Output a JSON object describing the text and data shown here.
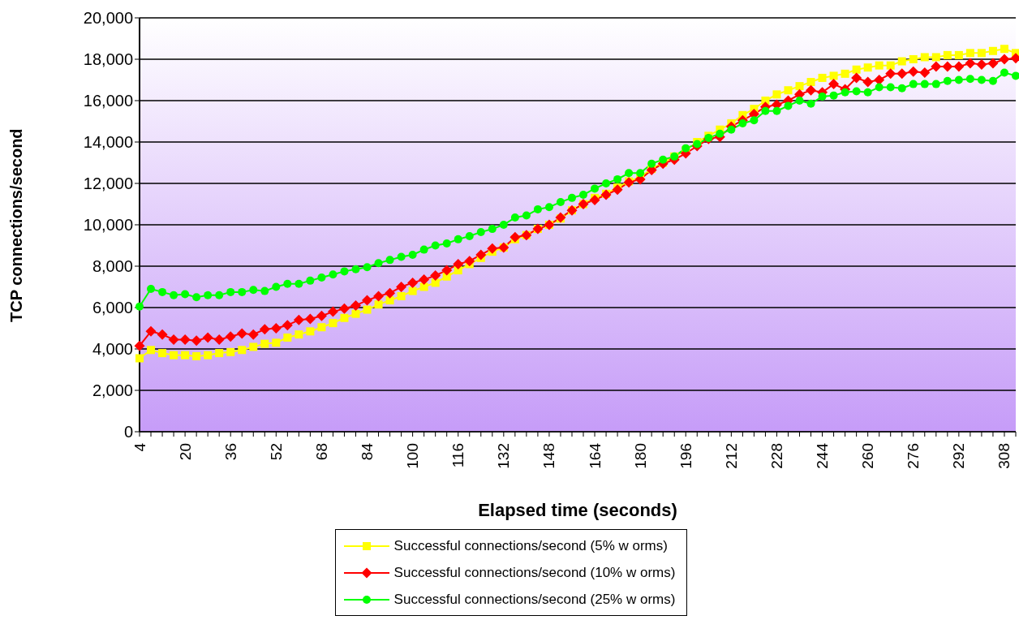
{
  "chart_data": {
    "type": "line",
    "xlabel": "Elapsed time (seconds)",
    "ylabel": "TCP connections/second",
    "categories": [
      "4",
      null,
      null,
      null,
      "20",
      null,
      null,
      null,
      "36",
      null,
      null,
      null,
      "52",
      null,
      null,
      null,
      "68",
      null,
      null,
      null,
      "84",
      null,
      null,
      null,
      "100",
      null,
      null,
      null,
      "116",
      null,
      null,
      null,
      "132",
      null,
      null,
      null,
      "148",
      null,
      null,
      null,
      "164",
      null,
      null,
      null,
      "180",
      null,
      null,
      null,
      "196",
      null,
      null,
      null,
      "212",
      null,
      null,
      null,
      "228",
      null,
      null,
      null,
      "244",
      null,
      null,
      null,
      "260",
      null,
      null,
      null,
      "276",
      null,
      null,
      null,
      "292",
      null,
      null,
      null,
      "308",
      null
    ],
    "series": [
      {
        "name": "Successful connections/second (5% w orms)",
        "color": "#ffff00",
        "marker": "square",
        "values": [
          3550,
          3950,
          3800,
          3700,
          3700,
          3650,
          3700,
          3800,
          3850,
          3950,
          4100,
          4250,
          4300,
          4550,
          4700,
          4850,
          5050,
          5250,
          5500,
          5700,
          5900,
          6150,
          6350,
          6550,
          6800,
          7000,
          7200,
          7500,
          7800,
          8100,
          8400,
          8700,
          8900,
          9300,
          9500,
          9800,
          10000,
          10300,
          10700,
          11000,
          11300,
          11500,
          11800,
          12100,
          12300,
          12700,
          13000,
          13300,
          13600,
          14000,
          14300,
          14600,
          14900,
          15300,
          15600,
          16000,
          16300,
          16500,
          16700,
          16900,
          17100,
          17200,
          17300,
          17500,
          17600,
          17700,
          17700,
          17900,
          18000,
          18100,
          18100,
          18200,
          18200,
          18300,
          18300,
          18400,
          18500,
          18300
        ]
      },
      {
        "name": "Successful connections/second (10% w orms)",
        "color": "#ff0000",
        "marker": "diamond",
        "values": [
          4150,
          4850,
          4700,
          4450,
          4450,
          4400,
          4550,
          4450,
          4600,
          4750,
          4700,
          4950,
          5000,
          5150,
          5400,
          5450,
          5600,
          5800,
          5950,
          6100,
          6350,
          6550,
          6700,
          7000,
          7200,
          7350,
          7550,
          7800,
          8100,
          8250,
          8550,
          8850,
          8900,
          9400,
          9500,
          9800,
          10000,
          10350,
          10700,
          11000,
          11200,
          11450,
          11700,
          12050,
          12200,
          12650,
          12950,
          13150,
          13450,
          13800,
          14150,
          14250,
          14750,
          15050,
          15350,
          15700,
          15800,
          16000,
          16300,
          16500,
          16400,
          16800,
          16550,
          17100,
          16900,
          17000,
          17300,
          17300,
          17400,
          17350,
          17650,
          17650,
          17650,
          17800,
          17750,
          17800,
          18000,
          18050
        ]
      },
      {
        "name": "Successful connections/second (25% w orms)",
        "color": "#00ff00",
        "marker": "circle",
        "values": [
          6050,
          6900,
          6750,
          6600,
          6650,
          6500,
          6600,
          6600,
          6750,
          6750,
          6850,
          6800,
          7000,
          7150,
          7150,
          7300,
          7450,
          7600,
          7750,
          7850,
          7950,
          8150,
          8300,
          8450,
          8550,
          8800,
          9000,
          9100,
          9300,
          9450,
          9650,
          9800,
          10000,
          10350,
          10450,
          10750,
          10850,
          11100,
          11300,
          11450,
          11750,
          12000,
          12200,
          12500,
          12500,
          12950,
          13150,
          13300,
          13700,
          13900,
          14200,
          14400,
          14600,
          14900,
          15050,
          15500,
          15500,
          15750,
          16000,
          15850,
          16200,
          16250,
          16400,
          16450,
          16400,
          16650,
          16650,
          16600,
          16800,
          16800,
          16800,
          16950,
          17000,
          17050,
          17000,
          16950,
          17350,
          17200
        ]
      }
    ],
    "ylim": [
      0,
      20000
    ],
    "yticks": [
      0,
      {
        "value": 2000,
        "label": "2,000"
      },
      {
        "value": 4000,
        "label": "4,000"
      },
      {
        "value": 6000,
        "label": "6,000"
      },
      {
        "value": 8000,
        "label": "8,000"
      },
      {
        "value": 10000,
        "label": "10,000"
      },
      {
        "value": 12000,
        "label": "12,000"
      },
      {
        "value": 14000,
        "label": "14,000"
      },
      {
        "value": 16000,
        "label": "16,000"
      },
      {
        "value": 18000,
        "label": "18,000"
      },
      {
        "value": 20000,
        "label": "20,000"
      }
    ],
    "grid": "y",
    "legend": "bottom",
    "line_style": "solid"
  }
}
